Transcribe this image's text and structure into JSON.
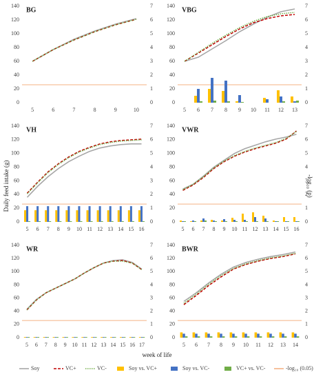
{
  "y_label": "Daily feed intake (g)",
  "y2_label": "-log₁₀ (p)",
  "x_label": "week of life",
  "chart_data": [
    {
      "type": "combo",
      "title": "BG",
      "categories": [
        "5",
        "6",
        "7",
        "8",
        "9",
        "10"
      ],
      "ylim": [
        0,
        140
      ],
      "yticks": [
        0,
        20,
        40,
        60,
        80,
        100,
        120,
        140
      ],
      "y2lim": [
        0,
        7
      ],
      "y2ticks": [
        0,
        1,
        2,
        3,
        4,
        5,
        6,
        7
      ],
      "threshold": {
        "name": "-log₁₀ (0.05)",
        "value": 1.301,
        "color": "#f4b183",
        "axis": "y2"
      },
      "series": [
        {
          "name": "Soy",
          "kind": "line",
          "dash": "solid",
          "color": "#a6a6a6",
          "values": [
            60,
            77,
            92,
            104,
            114,
            122
          ]
        },
        {
          "name": "VC+",
          "kind": "line",
          "dash": "dashed",
          "color": "#c00000",
          "values": [
            60,
            77,
            91,
            103,
            113,
            121
          ]
        },
        {
          "name": "VC-",
          "kind": "line",
          "dash": "dotted",
          "color": "#70ad47",
          "values": [
            60,
            77,
            91,
            103,
            113,
            121
          ]
        }
      ]
    },
    {
      "type": "combo",
      "title": "VBG",
      "categories": [
        "5",
        "6",
        "7",
        "8",
        "9",
        "10",
        "11",
        "12",
        "13"
      ],
      "ylim": [
        0,
        140
      ],
      "yticks": [
        0,
        20,
        40,
        60,
        80,
        100,
        120,
        140
      ],
      "y2lim": [
        0,
        7
      ],
      "y2ticks": [
        0,
        1,
        2,
        3,
        4,
        5,
        6,
        7
      ],
      "threshold": {
        "name": "-log₁₀ (0.05)",
        "value": 1.301,
        "color": "#f4b183",
        "axis": "y2"
      },
      "series": [
        {
          "name": "Soy",
          "kind": "line",
          "dash": "solid",
          "color": "#a6a6a6",
          "values": [
            60,
            66,
            78,
            90,
            103,
            114,
            124,
            132,
            136
          ]
        },
        {
          "name": "VC+",
          "kind": "line",
          "dash": "dashed",
          "color": "#c00000",
          "values": [
            60,
            72,
            84,
            96,
            107,
            116,
            122,
            126,
            128
          ]
        },
        {
          "name": "VC-",
          "kind": "line",
          "dash": "dotted",
          "color": "#70ad47",
          "values": [
            60,
            73,
            86,
            98,
            109,
            118,
            125,
            129,
            131
          ]
        },
        {
          "name": "Soy vs. VC+",
          "kind": "bar",
          "color": "#ffc000",
          "axis": "y2",
          "values": [
            0,
            0.5,
            1.0,
            0.85,
            0.1,
            0,
            0.35,
            0.9,
            0.45
          ]
        },
        {
          "name": "Soy vs. VC-",
          "kind": "bar",
          "color": "#4472c4",
          "axis": "y2",
          "values": [
            0,
            1.0,
            1.8,
            1.6,
            0.55,
            0,
            0.25,
            0.45,
            0.1
          ]
        },
        {
          "name": "VC+ vs. VC-",
          "kind": "bar",
          "color": "#70ad47",
          "axis": "y2",
          "values": [
            0,
            0.1,
            0.15,
            0.1,
            0.05,
            0,
            0,
            0.1,
            0.15
          ]
        }
      ]
    },
    {
      "type": "combo",
      "title": "VH",
      "categories": [
        "5",
        "6",
        "7",
        "8",
        "9",
        "10",
        "11",
        "12",
        "13",
        "14",
        "15",
        "16"
      ],
      "ylim": [
        0,
        140
      ],
      "yticks": [
        0,
        20,
        40,
        60,
        80,
        100,
        120,
        140
      ],
      "y2lim": [
        0,
        7
      ],
      "y2ticks": [
        0,
        1,
        2,
        3,
        4,
        5,
        6,
        7
      ],
      "threshold": {
        "name": "-log₁₀ (0.05)",
        "value": 1.301,
        "color": "#f4b183",
        "axis": "y2"
      },
      "series": [
        {
          "name": "Soy",
          "kind": "line",
          "dash": "solid",
          "color": "#a6a6a6",
          "values": [
            36,
            52,
            66,
            78,
            88,
            96,
            103,
            108,
            111,
            113,
            114,
            114
          ]
        },
        {
          "name": "VC+",
          "kind": "line",
          "dash": "dashed",
          "color": "#c00000",
          "values": [
            42,
            58,
            73,
            85,
            95,
            103,
            109,
            114,
            117,
            119,
            120,
            121
          ]
        },
        {
          "name": "VC-",
          "kind": "line",
          "dash": "dotted",
          "color": "#70ad47",
          "values": [
            41,
            57,
            72,
            84,
            94,
            102,
            108,
            113,
            116,
            118,
            119,
            120
          ]
        },
        {
          "name": "Soy vs. VC+",
          "kind": "bar",
          "color": "#ffc000",
          "axis": "y2",
          "values": [
            0.85,
            0.85,
            0.85,
            0.85,
            0.85,
            0.85,
            0.85,
            0.85,
            0.85,
            0.85,
            0.85,
            0.85
          ]
        },
        {
          "name": "Soy vs. VC-",
          "kind": "bar",
          "color": "#4472c4",
          "axis": "y2",
          "values": [
            1.15,
            1.15,
            1.15,
            1.15,
            1.15,
            1.15,
            1.15,
            1.15,
            1.15,
            1.15,
            1.15,
            1.15
          ]
        },
        {
          "name": "VC+ vs. VC-",
          "kind": "bar",
          "color": "#70ad47",
          "axis": "y2",
          "values": [
            0.05,
            0.05,
            0.05,
            0.05,
            0.05,
            0.05,
            0.05,
            0.05,
            0.05,
            0.05,
            0.05,
            0.05
          ]
        }
      ]
    },
    {
      "type": "combo",
      "title": "VWR",
      "categories": [
        "5",
        "6",
        "7",
        "8",
        "9",
        "10",
        "11",
        "12",
        "13",
        "14",
        "15",
        "16"
      ],
      "ylim": [
        0,
        140
      ],
      "yticks": [
        0,
        20,
        40,
        60,
        80,
        100,
        120,
        140
      ],
      "y2lim": [
        0,
        7
      ],
      "y2ticks": [
        0,
        1,
        2,
        3,
        4,
        5,
        6,
        7
      ],
      "threshold": {
        "name": "-log₁₀ (0.05)",
        "value": 1.301,
        "color": "#f4b183",
        "axis": "y2"
      },
      "series": [
        {
          "name": "Soy",
          "kind": "line",
          "dash": "solid",
          "color": "#a6a6a6",
          "values": [
            48,
            55,
            67,
            80,
            90,
            100,
            107,
            112,
            117,
            121,
            124,
            128
          ]
        },
        {
          "name": "VC+",
          "kind": "line",
          "dash": "dashed",
          "color": "#c00000",
          "values": [
            46,
            54,
            65,
            78,
            88,
            96,
            102,
            107,
            111,
            115,
            121,
            133
          ]
        },
        {
          "name": "VC-",
          "kind": "line",
          "dash": "dotted",
          "color": "#70ad47",
          "values": [
            47,
            55,
            66,
            79,
            89,
            97,
            103,
            108,
            112,
            116,
            122,
            132
          ]
        },
        {
          "name": "Soy vs. VC+",
          "kind": "bar",
          "color": "#ffc000",
          "axis": "y2",
          "values": [
            0.1,
            0.05,
            0.1,
            0.15,
            0.1,
            0.3,
            0.6,
            0.7,
            0.45,
            0.1,
            0.35,
            0.35
          ]
        },
        {
          "name": "Soy vs. VC-",
          "kind": "bar",
          "color": "#4472c4",
          "axis": "y2",
          "values": [
            0.05,
            0.1,
            0.25,
            0.1,
            0.2,
            0.15,
            0.15,
            0.35,
            0.25,
            0.05,
            0.05,
            0.05
          ]
        },
        {
          "name": "VC+ vs. VC-",
          "kind": "bar",
          "color": "#70ad47",
          "axis": "y2",
          "values": [
            0.05,
            0.05,
            0.1,
            0.05,
            0.05,
            0.05,
            0.05,
            0.05,
            0.05,
            0.05,
            0.05,
            0.05
          ]
        }
      ]
    },
    {
      "type": "combo",
      "title": "WR",
      "categories": [
        "5",
        "6",
        "7",
        "8",
        "9",
        "10",
        "11",
        "12",
        "13",
        "14",
        "15",
        "16",
        "17"
      ],
      "ylim": [
        0,
        140
      ],
      "yticks": [
        0,
        20,
        40,
        60,
        80,
        100,
        120,
        140
      ],
      "y2lim": [
        0,
        7
      ],
      "y2ticks": [
        0,
        1,
        2,
        3,
        4,
        5,
        6,
        7
      ],
      "threshold": {
        "name": "-log₁₀ (0.05)",
        "value": 1.301,
        "color": "#f4b183",
        "axis": "y2"
      },
      "series": [
        {
          "name": "Soy",
          "kind": "line",
          "dash": "solid",
          "color": "#a6a6a6",
          "values": [
            43,
            58,
            68,
            75,
            82,
            89,
            98,
            106,
            113,
            117,
            118,
            114,
            104
          ]
        },
        {
          "name": "VC+",
          "kind": "line",
          "dash": "dashed",
          "color": "#c00000",
          "values": [
            42,
            57,
            68,
            75,
            82,
            89,
            98,
            106,
            113,
            116,
            117,
            113,
            103
          ]
        },
        {
          "name": "VC-",
          "kind": "line",
          "dash": "dotted",
          "color": "#70ad47",
          "values": [
            42,
            57,
            68,
            75,
            82,
            89,
            98,
            106,
            113,
            116,
            116,
            113,
            103
          ]
        },
        {
          "name": "Soy vs. VC+",
          "kind": "bar",
          "color": "#ffc000",
          "axis": "y2",
          "values": [
            0.05,
            0.05,
            0.05,
            0.05,
            0.05,
            0.05,
            0.05,
            0.05,
            0.05,
            0.05,
            0.05,
            0.05,
            0.05
          ]
        },
        {
          "name": "Soy vs. VC-",
          "kind": "bar",
          "color": "#4472c4",
          "axis": "y2",
          "values": [
            0.05,
            0.05,
            0.05,
            0.05,
            0.05,
            0.05,
            0.05,
            0.05,
            0.05,
            0.05,
            0.05,
            0.05,
            0.05
          ]
        },
        {
          "name": "VC+ vs. VC-",
          "kind": "bar",
          "color": "#70ad47",
          "axis": "y2",
          "values": [
            0.05,
            0.05,
            0.05,
            0.05,
            0.05,
            0.05,
            0.05,
            0.05,
            0.05,
            0.05,
            0.05,
            0.05,
            0.05
          ]
        }
      ]
    },
    {
      "type": "combo",
      "title": "BWR",
      "categories": [
        "5",
        "6",
        "7",
        "8",
        "9",
        "10",
        "11",
        "12",
        "13",
        "14"
      ],
      "ylim": [
        0,
        140
      ],
      "yticks": [
        0,
        20,
        40,
        60,
        80,
        100,
        120,
        140
      ],
      "y2lim": [
        0,
        7
      ],
      "y2ticks": [
        0,
        1,
        2,
        3,
        4,
        5,
        6,
        7
      ],
      "threshold": {
        "name": "-log₁₀ (0.05)",
        "value": 1.301,
        "color": "#f4b183",
        "axis": "y2"
      },
      "series": [
        {
          "name": "Soy",
          "kind": "line",
          "dash": "solid",
          "color": "#a6a6a6",
          "values": [
            55,
            68,
            83,
            96,
            107,
            114,
            119,
            123,
            126,
            130
          ]
        },
        {
          "name": "VC+",
          "kind": "line",
          "dash": "dashed",
          "color": "#c00000",
          "values": [
            50,
            64,
            79,
            92,
            104,
            111,
            116,
            120,
            123,
            127
          ]
        },
        {
          "name": "VC-",
          "kind": "line",
          "dash": "dotted",
          "color": "#70ad47",
          "values": [
            52,
            66,
            81,
            94,
            105,
            112,
            117,
            121,
            124,
            128
          ]
        },
        {
          "name": "Soy vs. VC+",
          "kind": "bar",
          "color": "#ffc000",
          "axis": "y2",
          "values": [
            0.4,
            0.4,
            0.4,
            0.4,
            0.4,
            0.4,
            0.4,
            0.4,
            0.4,
            0.4
          ]
        },
        {
          "name": "Soy vs. VC-",
          "kind": "bar",
          "color": "#4472c4",
          "axis": "y2",
          "values": [
            0.3,
            0.3,
            0.3,
            0.3,
            0.3,
            0.3,
            0.3,
            0.3,
            0.3,
            0.3
          ]
        },
        {
          "name": "VC+ vs. VC-",
          "kind": "bar",
          "color": "#70ad47",
          "axis": "y2",
          "values": [
            0.1,
            0.1,
            0.1,
            0.1,
            0.1,
            0.1,
            0.1,
            0.1,
            0.1,
            0.1
          ]
        }
      ]
    }
  ]
}
